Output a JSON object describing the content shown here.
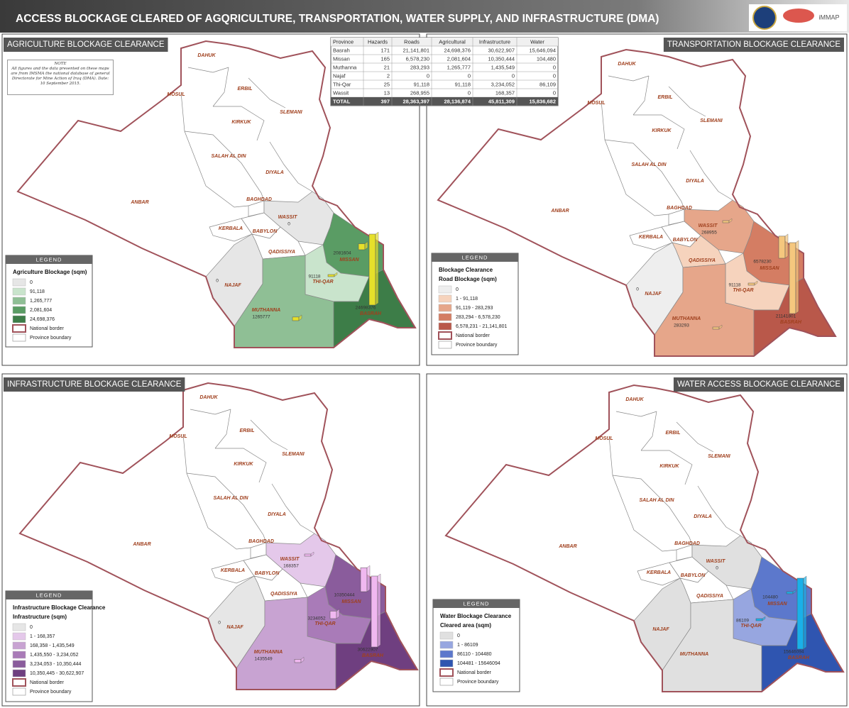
{
  "header": {
    "title": "ACCESS BLOCKAGE CLEARED OF AGQRICULTURE, TRANSPORTATION, WATER SUPPLY, AND INFRASTRUCTURE (DMA)",
    "logo_text": "iMMAP"
  },
  "note": {
    "title": "NOTE",
    "text": "All figures and the data presented on these maps are from IMSMA the national database of general Directorate for Mine Action of Iraq (DMA). Date: 10 September 2015."
  },
  "table": {
    "columns": [
      "Province",
      "Hazards",
      "Roads",
      "Agricultural",
      "Infrastructure",
      "Water"
    ],
    "rows": [
      [
        "Basrah",
        "171",
        "21,141,801",
        "24,698,376",
        "30,622,907",
        "15,646,094"
      ],
      [
        "Missan",
        "165",
        "6,578,230",
        "2,081,604",
        "10,350,444",
        "104,480"
      ],
      [
        "Muthanna",
        "21",
        "283,293",
        "1,265,777",
        "1,435,549",
        "0"
      ],
      [
        "Najaf",
        "2",
        "0",
        "0",
        "0",
        "0"
      ],
      [
        "Thi-Qar",
        "25",
        "91,118",
        "91,118",
        "3,234,052",
        "86,109"
      ],
      [
        "Wassit",
        "13",
        "268,955",
        "0",
        "168,357",
        "0"
      ]
    ],
    "total": [
      "TOTAL",
      "397",
      "28,363,397",
      "28,136,874",
      "45,811,309",
      "15,836,682"
    ]
  },
  "maps": [
    {
      "title": "AGRICULTURE BLOCKAGE CLEARANCE",
      "bar_color": "#e6e02a",
      "legend": {
        "header": "LEGEND",
        "title": "Agriculture Blockage (sqm)",
        "items": [
          {
            "label": "0",
            "color": "#e6e6e6"
          },
          {
            "label": "91,118",
            "color": "#c9e4cc"
          },
          {
            "label": "1,265,777",
            "color": "#8fbf95"
          },
          {
            "label": "2,081,604",
            "color": "#5a9c64"
          },
          {
            "label": "24,698,376",
            "color": "#3d7d48"
          }
        ],
        "border_label": "National border",
        "boundary_label": "Province boundary"
      },
      "provinces": [
        {
          "label": "DAHUK"
        },
        {
          "label": "MOSUL"
        },
        {
          "label": "ERBIL"
        },
        {
          "label": "SLEMANI"
        },
        {
          "label": "KIRKUK"
        },
        {
          "label": "SALAH AL DIN"
        },
        {
          "label": "DIYALA"
        },
        {
          "label": "ANBAR"
        },
        {
          "label": "BAGHDAD"
        },
        {
          "label": "KERBALA"
        },
        {
          "label": "BABYLON"
        },
        {
          "label": "WASSIT",
          "fill": "#e6e6e6",
          "value": 0
        },
        {
          "label": "QADISSIYA"
        },
        {
          "label": "NAJAF",
          "fill": "#e6e6e6",
          "value": 0
        },
        {
          "label": "MISSAN",
          "fill": "#5a9c64",
          "value": 2081604
        },
        {
          "label": "THI-QAR",
          "fill": "#c9e4cc",
          "value": 91118
        },
        {
          "label": "MUTHANNA",
          "fill": "#8fbf95",
          "value": 1265777
        },
        {
          "label": "BASRAH",
          "fill": "#3d7d48",
          "value": 24698376
        }
      ]
    },
    {
      "title": "TRANSPORTATION BLOCKAGE CLEARANCE",
      "bar_color": "#f5c77e",
      "legend": {
        "header": "LEGEND",
        "title": "Blockage Clearance",
        "subtitle": "Road Blockage (sqm)",
        "items": [
          {
            "label": "0",
            "color": "#eeeeee"
          },
          {
            "label": "1 - 91,118",
            "color": "#f6d3bd"
          },
          {
            "label": "91,119 - 283,293",
            "color": "#e6a68a"
          },
          {
            "label": "283,294 - 6,578,230",
            "color": "#d47d63"
          },
          {
            "label": "6,578,231 - 21,141,801",
            "color": "#b9584a"
          }
        ],
        "border_label": "National border",
        "boundary_label": "Province boundary"
      },
      "provinces": [
        {
          "label": "DAHUK"
        },
        {
          "label": "MOSUL"
        },
        {
          "label": "ERBIL"
        },
        {
          "label": "SLEMANI"
        },
        {
          "label": "KIRKUK"
        },
        {
          "label": "SALAH AL DIN"
        },
        {
          "label": "DIYALA"
        },
        {
          "label": "ANBAR"
        },
        {
          "label": "BAGHDAD"
        },
        {
          "label": "KERBALA"
        },
        {
          "label": "BABYLON"
        },
        {
          "label": "WASSIT",
          "fill": "#e6a68a",
          "value": 268955
        },
        {
          "label": "QADISSIYA",
          "fill": "#f6d3bd"
        },
        {
          "label": "NAJAF",
          "fill": "#eeeeee",
          "value": 0
        },
        {
          "label": "MISSAN",
          "fill": "#d47d63",
          "value": 6578230
        },
        {
          "label": "THI-QAR",
          "fill": "#f6d3bd",
          "value": 91118
        },
        {
          "label": "MUTHANNA",
          "fill": "#e6a68a",
          "value": 283293
        },
        {
          "label": "BASRAH",
          "fill": "#b9584a",
          "value": 21141801
        }
      ]
    },
    {
      "title": "INFRASTRUCTURE BLOCKAGE CLEARANCE",
      "bar_color": "#f0b8f0",
      "legend": {
        "header": "LEGEND",
        "title": "Infrastructure Blockage Clearance",
        "subtitle": "Infrastructure (sqm)",
        "items": [
          {
            "label": "0",
            "color": "#e6e6e6"
          },
          {
            "label": "1 - 168,357",
            "color": "#e4c8ea"
          },
          {
            "label": "168,358 - 1,435,549",
            "color": "#c8a3d2"
          },
          {
            "label": "1,435,550 - 3,234,052",
            "color": "#a97bb8"
          },
          {
            "label": "3,234,053 - 10,350,444",
            "color": "#8a5c9c"
          },
          {
            "label": "10,350,445 - 30,622,907",
            "color": "#6f3f80"
          }
        ],
        "border_label": "National border",
        "boundary_label": "Province boundary"
      },
      "provinces": [
        {
          "label": "DAHUK"
        },
        {
          "label": "MOSUL"
        },
        {
          "label": "ERBIL"
        },
        {
          "label": "SLEMANI"
        },
        {
          "label": "KIRKUK"
        },
        {
          "label": "SALAH AL DIN"
        },
        {
          "label": "DIYALA"
        },
        {
          "label": "ANBAR"
        },
        {
          "label": "BAGHDAD"
        },
        {
          "label": "KERBALA"
        },
        {
          "label": "BABYLON"
        },
        {
          "label": "WASSIT",
          "fill": "#e4c8ea",
          "value": 168357
        },
        {
          "label": "QADISSIYA"
        },
        {
          "label": "NAJAF",
          "fill": "#e6e6e6",
          "value": 0
        },
        {
          "label": "MISSAN",
          "fill": "#8a5c9c",
          "value": 10350444
        },
        {
          "label": "THI-QAR",
          "fill": "#a97bb8",
          "value": 3234052
        },
        {
          "label": "MUTHANNA",
          "fill": "#c8a3d2",
          "value": 1435549
        },
        {
          "label": "BASRAH",
          "fill": "#6f3f80",
          "value": 30622907
        }
      ]
    },
    {
      "title": "WATER ACCESS BLOCKAGE CLEARANCE",
      "bar_color": "#1ab0e8",
      "legend": {
        "header": "LEGEND",
        "title": "Water Blockage Clearance",
        "subtitle": "Cleared area (sqm)",
        "items": [
          {
            "label": "0",
            "color": "#e0e0e0"
          },
          {
            "label": "1 - 86109",
            "color": "#97a6e0"
          },
          {
            "label": "86110 - 104480",
            "color": "#5c78cc"
          },
          {
            "label": "104481 - 15646094",
            "color": "#2f55b0"
          }
        ],
        "border_label": "National border",
        "boundary_label": "Province boundary"
      },
      "provinces": [
        {
          "label": "DAHUK"
        },
        {
          "label": "MOSUL"
        },
        {
          "label": "ERBIL"
        },
        {
          "label": "SLEMANI"
        },
        {
          "label": "KIRKUK"
        },
        {
          "label": "SALAH AL DIN"
        },
        {
          "label": "DIYALA"
        },
        {
          "label": "ANBAR"
        },
        {
          "label": "BAGHDAD"
        },
        {
          "label": "KERBALA"
        },
        {
          "label": "BABYLON"
        },
        {
          "label": "WASSIT",
          "fill": "#e0e0e0",
          "value": 0
        },
        {
          "label": "QADISSIYA"
        },
        {
          "label": "NAJAF",
          "fill": "#e0e0e0"
        },
        {
          "label": "MISSAN",
          "fill": "#5c78cc",
          "value": 104480
        },
        {
          "label": "THI-QAR",
          "fill": "#97a6e0",
          "value": 86109
        },
        {
          "label": "MUTHANNA",
          "fill": "#e0e0e0"
        },
        {
          "label": "BASRAH",
          "fill": "#2f55b0",
          "value": 15646094
        }
      ]
    }
  ]
}
